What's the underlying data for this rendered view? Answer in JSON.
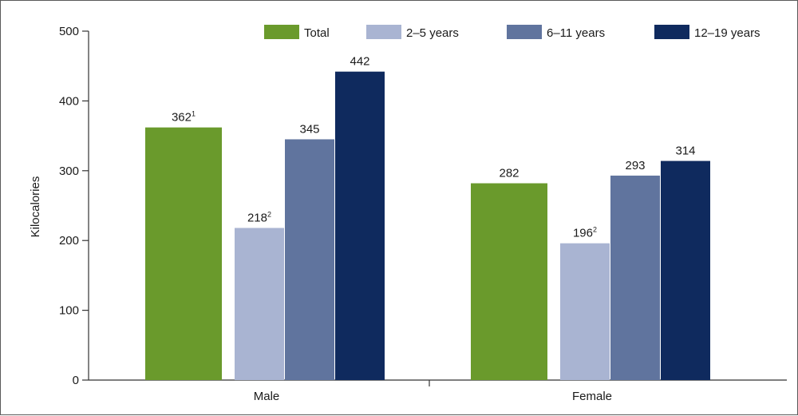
{
  "chart_data": {
    "type": "bar",
    "title": "",
    "xlabel": "",
    "ylabel": "Kilocalories",
    "ylim": [
      0,
      500
    ],
    "yticks": [
      "0",
      "100",
      "200",
      "300",
      "400",
      "500"
    ],
    "categories": [
      "Male",
      "Female"
    ],
    "legend_position": "top-right",
    "grid": false,
    "series": [
      {
        "name": "Total",
        "color": "#6a9a2c",
        "values": [
          362,
          282
        ],
        "labels": [
          "362",
          "282"
        ],
        "notes": [
          "1",
          ""
        ]
      },
      {
        "name": "2–5 years",
        "color": "#a9b4d2",
        "values": [
          218,
          196
        ],
        "labels": [
          "218",
          "196"
        ],
        "notes": [
          "2",
          "2"
        ]
      },
      {
        "name": "6–11 years",
        "color": "#60749e",
        "values": [
          345,
          293
        ],
        "labels": [
          "345",
          "293"
        ],
        "notes": [
          "",
          ""
        ]
      },
      {
        "name": "12–19 years",
        "color": "#0f2a5e",
        "values": [
          442,
          314
        ],
        "labels": [
          "442",
          "314"
        ],
        "notes": [
          "",
          ""
        ]
      }
    ]
  }
}
